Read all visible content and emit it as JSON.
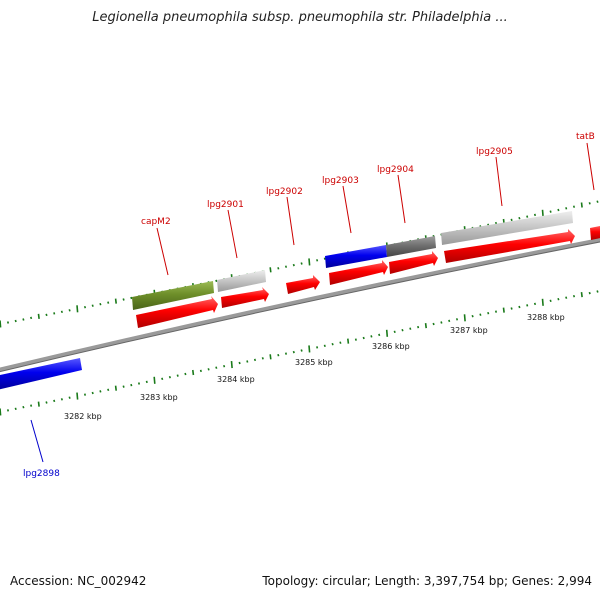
{
  "title": "Legionella pneumophila subsp. pneumophila str. Philadelphia ...",
  "footer": {
    "accession": "Accession: NC_002942",
    "summary": "Topology: circular; Length: 3,397,754 bp; Genes: 2,994"
  },
  "colors": {
    "forward_gene": "#ff0000",
    "reverse_gene": "#0000ee",
    "label_forward": "#cc0000",
    "label_reverse": "#0000cc",
    "backbone": "#888888",
    "tick": "#1a7a1a",
    "capm2": "#6e8f2a",
    "pseudo_light": "#c8c8c8",
    "pseudo_dark": "#707070"
  },
  "kbp_labels": [
    "3282 kbp",
    "3283 kbp",
    "3284 kbp",
    "3285 kbp",
    "3286 kbp",
    "3287 kbp",
    "3288 kbp"
  ],
  "gene_labels": [
    {
      "name": "lpg2898",
      "color": "#0000cc"
    },
    {
      "name": "capM2",
      "color": "#cc0000"
    },
    {
      "name": "lpg2901",
      "color": "#cc0000"
    },
    {
      "name": "lpg2902",
      "color": "#cc0000"
    },
    {
      "name": "lpg2903",
      "color": "#cc0000"
    },
    {
      "name": "lpg2904",
      "color": "#cc0000"
    },
    {
      "name": "lpg2905",
      "color": "#cc0000"
    },
    {
      "name": "tatB",
      "color": "#cc0000"
    }
  ]
}
